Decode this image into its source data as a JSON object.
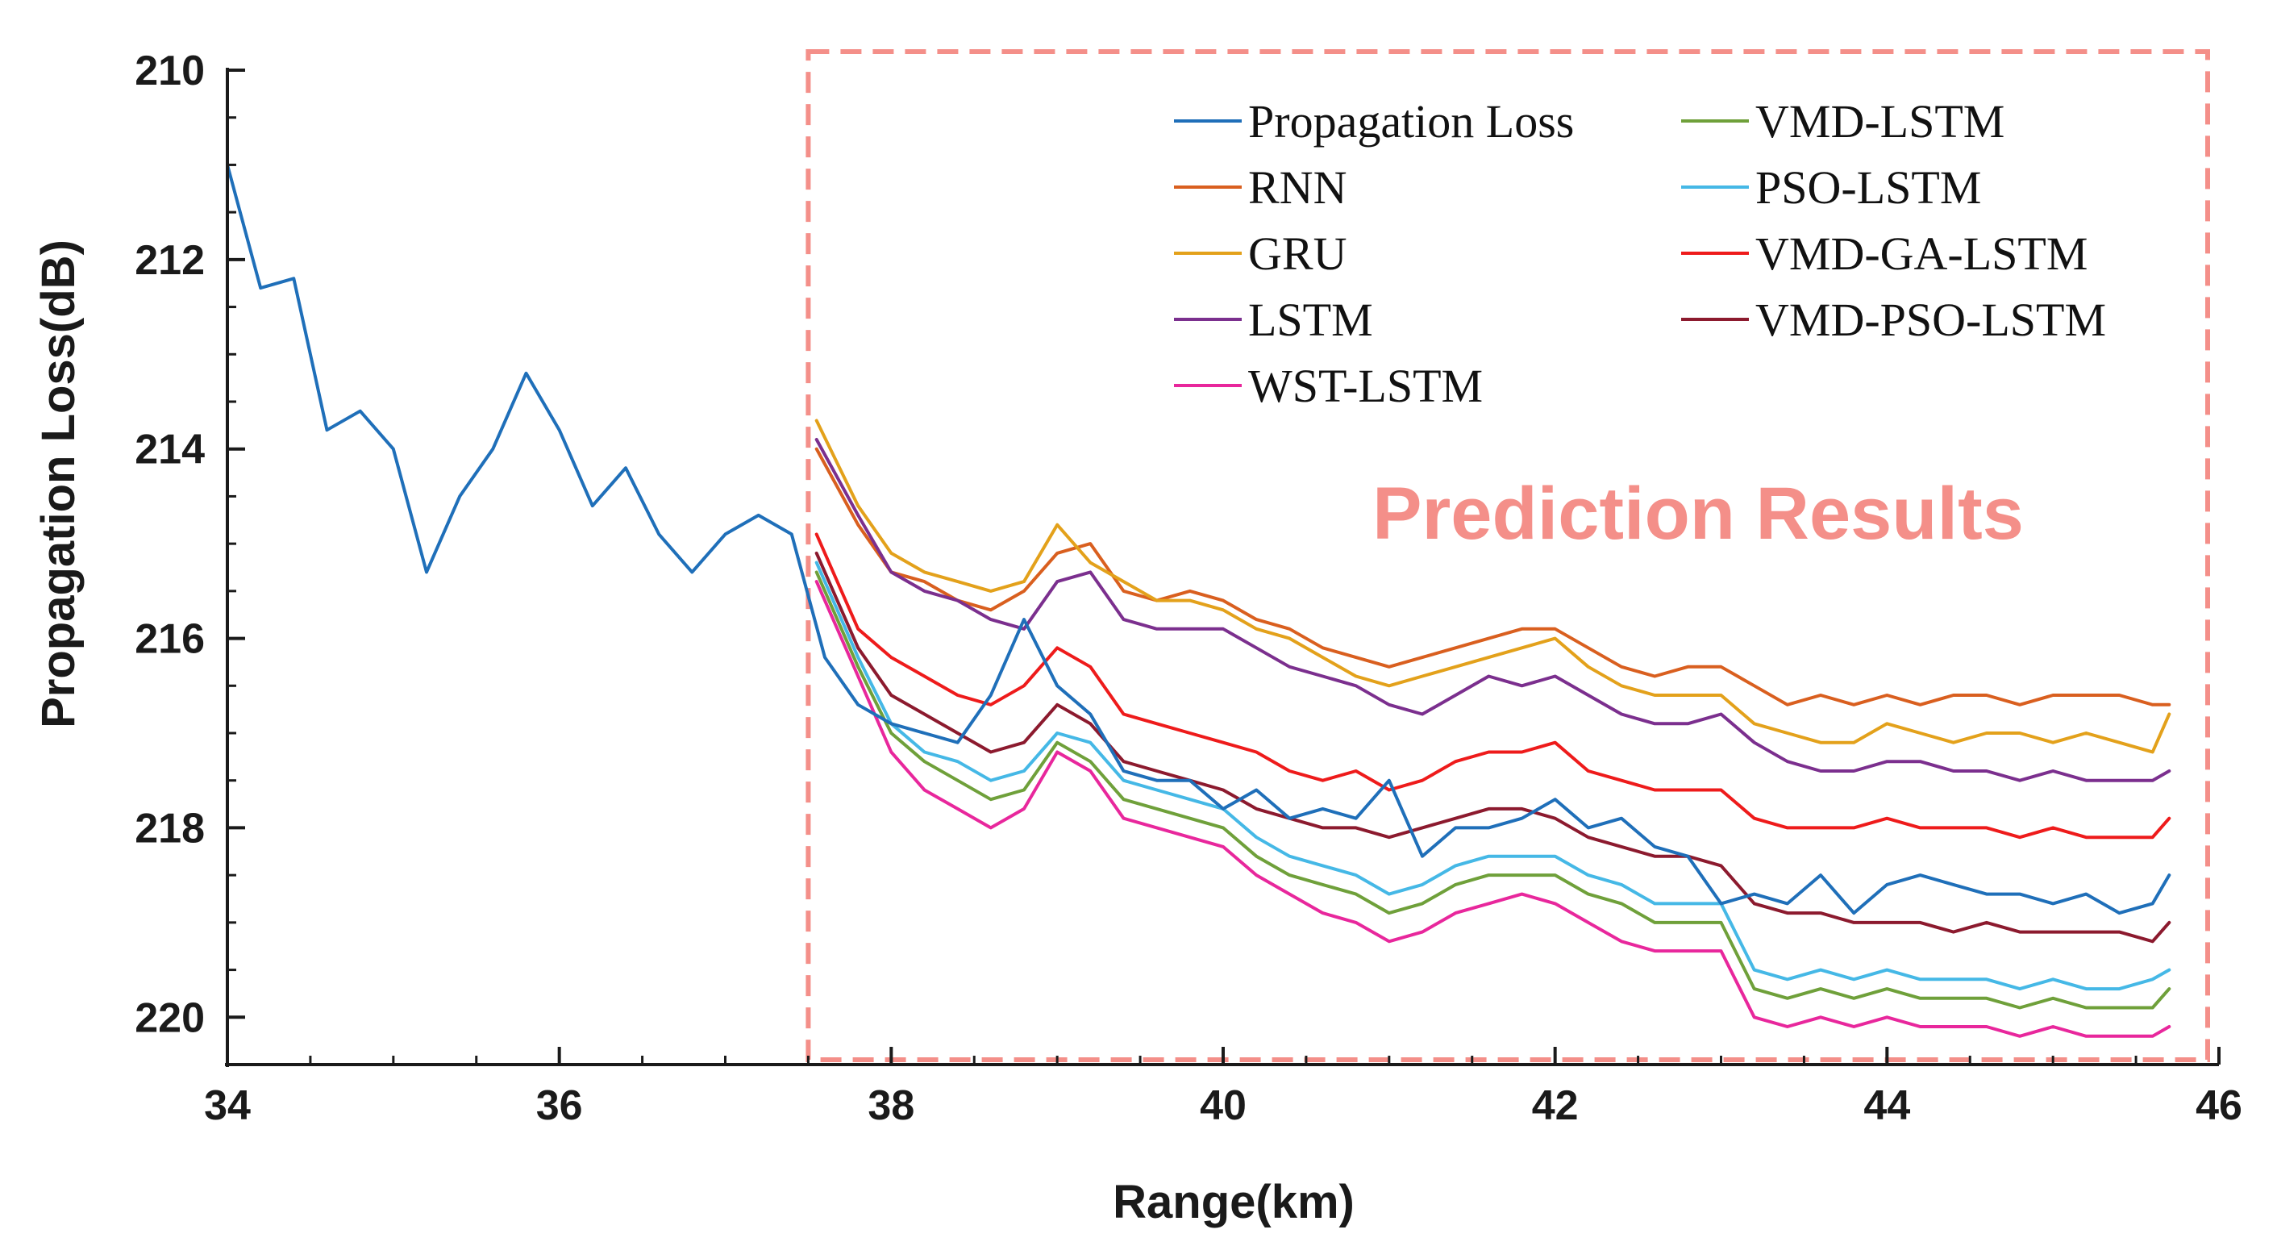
{
  "chart_data": {
    "type": "line",
    "title": "",
    "xlabel": "Range(km)",
    "ylabel": "Propagation Loss(dB)",
    "xlim": [
      34,
      46
    ],
    "ylim": [
      220.5,
      210
    ],
    "y_reversed": true,
    "grid": false,
    "legend_placement": "top-right",
    "x_ticks": [
      "34",
      "36",
      "38",
      "40",
      "42",
      "44",
      "46"
    ],
    "y_ticks": [
      "210",
      "212",
      "214",
      "216",
      "218",
      "220"
    ],
    "annotation": "Prediction Results",
    "highlight_region": {
      "x_start": 37.5,
      "x_end": 46,
      "color": "#f48f89"
    },
    "series": [
      {
        "name": "Propagation Loss",
        "color": "#1f6fb9",
        "x": [
          34.0,
          34.2,
          34.4,
          34.6,
          34.8,
          35.0,
          35.2,
          35.4,
          35.6,
          35.8,
          36.0,
          36.2,
          36.4,
          36.6,
          36.8,
          37.0,
          37.2,
          37.4,
          37.6,
          37.8,
          38.0,
          38.2,
          38.4,
          38.6,
          38.8,
          39.0,
          39.2,
          39.4,
          39.6,
          39.8,
          40.0,
          40.2,
          40.4,
          40.6,
          40.8,
          41.0,
          41.2,
          41.4,
          41.6,
          41.8,
          42.0,
          42.2,
          42.4,
          42.6,
          42.8,
          43.0,
          43.2,
          43.4,
          43.6,
          43.8,
          44.0,
          44.2,
          44.4,
          44.6,
          44.8,
          45.0,
          45.2,
          45.4,
          45.6,
          45.7
        ],
        "y": [
          211.0,
          212.3,
          212.2,
          213.8,
          213.6,
          214.0,
          215.3,
          214.5,
          214.0,
          213.2,
          213.8,
          214.6,
          214.2,
          214.9,
          215.3,
          214.9,
          214.7,
          214.9,
          216.2,
          216.7,
          216.9,
          217.0,
          217.1,
          216.6,
          215.8,
          216.5,
          216.8,
          217.4,
          217.5,
          217.5,
          217.8,
          217.6,
          217.9,
          217.8,
          217.9,
          217.5,
          218.3,
          218.0,
          218.0,
          217.9,
          217.7,
          218.0,
          217.9,
          218.2,
          218.3,
          218.8,
          218.7,
          218.8,
          218.5,
          218.9,
          218.6,
          218.5,
          218.6,
          218.7,
          218.7,
          218.8,
          218.7,
          218.9,
          218.8,
          218.5
        ]
      },
      {
        "name": "RNN",
        "color": "#d95f1f",
        "x": [
          37.55,
          37.8,
          38.0,
          38.2,
          38.4,
          38.6,
          38.8,
          39.0,
          39.2,
          39.4,
          39.6,
          39.8,
          40.0,
          40.2,
          40.4,
          40.6,
          40.8,
          41.0,
          41.2,
          41.4,
          41.6,
          41.8,
          42.0,
          42.2,
          42.4,
          42.6,
          42.8,
          43.0,
          43.2,
          43.4,
          43.6,
          43.8,
          44.0,
          44.2,
          44.4,
          44.6,
          44.8,
          45.0,
          45.2,
          45.4,
          45.6,
          45.7
        ],
        "y": [
          214.0,
          214.8,
          215.3,
          215.4,
          215.6,
          215.7,
          215.5,
          215.1,
          215.0,
          215.5,
          215.6,
          215.5,
          215.6,
          215.8,
          215.9,
          216.1,
          216.2,
          216.3,
          216.2,
          216.1,
          216.0,
          215.9,
          215.9,
          216.1,
          216.3,
          216.4,
          216.3,
          216.3,
          216.5,
          216.7,
          216.6,
          216.7,
          216.6,
          216.7,
          216.6,
          216.6,
          216.7,
          216.6,
          216.6,
          216.6,
          216.7,
          216.7
        ]
      },
      {
        "name": "GRU",
        "color": "#e3a11b",
        "x": [
          37.55,
          37.8,
          38.0,
          38.2,
          38.4,
          38.6,
          38.8,
          39.0,
          39.2,
          39.4,
          39.6,
          39.8,
          40.0,
          40.2,
          40.4,
          40.6,
          40.8,
          41.0,
          41.2,
          41.4,
          41.6,
          41.8,
          42.0,
          42.2,
          42.4,
          42.6,
          42.8,
          43.0,
          43.2,
          43.4,
          43.6,
          43.8,
          44.0,
          44.2,
          44.4,
          44.6,
          44.8,
          45.0,
          45.2,
          45.4,
          45.6,
          45.7
        ],
        "y": [
          213.7,
          214.6,
          215.1,
          215.3,
          215.4,
          215.5,
          215.4,
          214.8,
          215.2,
          215.4,
          215.6,
          215.6,
          215.7,
          215.9,
          216.0,
          216.2,
          216.4,
          216.5,
          216.4,
          216.3,
          216.2,
          216.1,
          216.0,
          216.3,
          216.5,
          216.6,
          216.6,
          216.6,
          216.9,
          217.0,
          217.1,
          217.1,
          216.9,
          217.0,
          217.1,
          217.0,
          217.0,
          217.1,
          217.0,
          217.1,
          217.2,
          216.8
        ]
      },
      {
        "name": "LSTM",
        "color": "#7b2f8e",
        "x": [
          37.55,
          37.8,
          38.0,
          38.2,
          38.4,
          38.6,
          38.8,
          39.0,
          39.2,
          39.4,
          39.6,
          39.8,
          40.0,
          40.2,
          40.4,
          40.6,
          40.8,
          41.0,
          41.2,
          41.4,
          41.6,
          41.8,
          42.0,
          42.2,
          42.4,
          42.6,
          42.8,
          43.0,
          43.2,
          43.4,
          43.6,
          43.8,
          44.0,
          44.2,
          44.4,
          44.6,
          44.8,
          45.0,
          45.2,
          45.4,
          45.6,
          45.7
        ],
        "y": [
          213.9,
          214.7,
          215.3,
          215.5,
          215.6,
          215.8,
          215.9,
          215.4,
          215.3,
          215.8,
          215.9,
          215.9,
          215.9,
          216.1,
          216.3,
          216.4,
          216.5,
          216.7,
          216.8,
          216.6,
          216.4,
          216.5,
          216.4,
          216.6,
          216.8,
          216.9,
          216.9,
          216.8,
          217.1,
          217.3,
          217.4,
          217.4,
          217.3,
          217.3,
          217.4,
          217.4,
          217.5,
          217.4,
          217.5,
          217.5,
          217.5,
          217.4
        ]
      },
      {
        "name": "WST-LSTM",
        "color": "#e8279c",
        "x": [
          37.55,
          37.8,
          38.0,
          38.2,
          38.4,
          38.6,
          38.8,
          39.0,
          39.2,
          39.4,
          39.6,
          39.8,
          40.0,
          40.2,
          40.4,
          40.6,
          40.8,
          41.0,
          41.2,
          41.4,
          41.6,
          41.8,
          42.0,
          42.2,
          42.4,
          42.6,
          42.8,
          43.0,
          43.2,
          43.4,
          43.6,
          43.8,
          44.0,
          44.2,
          44.4,
          44.6,
          44.8,
          45.0,
          45.2,
          45.4,
          45.6,
          45.7
        ],
        "y": [
          215.4,
          216.4,
          217.2,
          217.6,
          217.8,
          218.0,
          217.8,
          217.2,
          217.4,
          217.9,
          218.0,
          218.1,
          218.2,
          218.5,
          218.7,
          218.9,
          219.0,
          219.2,
          219.1,
          218.9,
          218.8,
          218.7,
          218.8,
          219.0,
          219.2,
          219.3,
          219.3,
          219.3,
          220.0,
          220.1,
          220.0,
          220.1,
          220.0,
          220.1,
          220.1,
          220.1,
          220.2,
          220.1,
          220.2,
          220.2,
          220.2,
          220.1
        ]
      },
      {
        "name": "VMD-LSTM",
        "color": "#6fa03a",
        "x": [
          37.55,
          37.8,
          38.0,
          38.2,
          38.4,
          38.6,
          38.8,
          39.0,
          39.2,
          39.4,
          39.6,
          39.8,
          40.0,
          40.2,
          40.4,
          40.6,
          40.8,
          41.0,
          41.2,
          41.4,
          41.6,
          41.8,
          42.0,
          42.2,
          42.4,
          42.6,
          42.8,
          43.0,
          43.2,
          43.4,
          43.6,
          43.8,
          44.0,
          44.2,
          44.4,
          44.6,
          44.8,
          45.0,
          45.2,
          45.4,
          45.6,
          45.7
        ],
        "y": [
          215.3,
          216.3,
          217.0,
          217.3,
          217.5,
          217.7,
          217.6,
          217.1,
          217.3,
          217.7,
          217.8,
          217.9,
          218.0,
          218.3,
          218.5,
          218.6,
          218.7,
          218.9,
          218.8,
          218.6,
          218.5,
          218.5,
          218.5,
          218.7,
          218.8,
          219.0,
          219.0,
          219.0,
          219.7,
          219.8,
          219.7,
          219.8,
          219.7,
          219.8,
          219.8,
          219.8,
          219.9,
          219.8,
          219.9,
          219.9,
          219.9,
          219.7
        ]
      },
      {
        "name": "PSO-LSTM",
        "color": "#45b8e6",
        "x": [
          37.55,
          37.8,
          38.0,
          38.2,
          38.4,
          38.6,
          38.8,
          39.0,
          39.2,
          39.4,
          39.6,
          39.8,
          40.0,
          40.2,
          40.4,
          40.6,
          40.8,
          41.0,
          41.2,
          41.4,
          41.6,
          41.8,
          42.0,
          42.2,
          42.4,
          42.6,
          42.8,
          43.0,
          43.2,
          43.4,
          43.6,
          43.8,
          44.0,
          44.2,
          44.4,
          44.6,
          44.8,
          45.0,
          45.2,
          45.4,
          45.6,
          45.7
        ],
        "y": [
          215.2,
          216.2,
          216.9,
          217.2,
          217.3,
          217.5,
          217.4,
          217.0,
          217.1,
          217.5,
          217.6,
          217.7,
          217.8,
          218.1,
          218.3,
          218.4,
          218.5,
          218.7,
          218.6,
          218.4,
          218.3,
          218.3,
          218.3,
          218.5,
          218.6,
          218.8,
          218.8,
          218.8,
          219.5,
          219.6,
          219.5,
          219.6,
          219.5,
          219.6,
          219.6,
          219.6,
          219.7,
          219.6,
          219.7,
          219.7,
          219.6,
          219.5
        ]
      },
      {
        "name": "VMD-GA-LSTM",
        "color": "#ee1b1b",
        "x": [
          37.55,
          37.8,
          38.0,
          38.2,
          38.4,
          38.6,
          38.8,
          39.0,
          39.2,
          39.4,
          39.6,
          39.8,
          40.0,
          40.2,
          40.4,
          40.6,
          40.8,
          41.0,
          41.2,
          41.4,
          41.6,
          41.8,
          42.0,
          42.2,
          42.4,
          42.6,
          42.8,
          43.0,
          43.2,
          43.4,
          43.6,
          43.8,
          44.0,
          44.2,
          44.4,
          44.6,
          44.8,
          45.0,
          45.2,
          45.4,
          45.6,
          45.7
        ],
        "y": [
          214.9,
          215.9,
          216.2,
          216.4,
          216.6,
          216.7,
          216.5,
          216.1,
          216.3,
          216.8,
          216.9,
          217.0,
          217.1,
          217.2,
          217.4,
          217.5,
          217.4,
          217.6,
          217.5,
          217.3,
          217.2,
          217.2,
          217.1,
          217.4,
          217.5,
          217.6,
          217.6,
          217.6,
          217.9,
          218.0,
          218.0,
          218.0,
          217.9,
          218.0,
          218.0,
          218.0,
          218.1,
          218.0,
          218.1,
          218.1,
          218.1,
          217.9
        ]
      },
      {
        "name": "VMD-PSO-LSTM",
        "color": "#8c1a2e",
        "x": [
          37.55,
          37.8,
          38.0,
          38.2,
          38.4,
          38.6,
          38.8,
          39.0,
          39.2,
          39.4,
          39.6,
          39.8,
          40.0,
          40.2,
          40.4,
          40.6,
          40.8,
          41.0,
          41.2,
          41.4,
          41.6,
          41.8,
          42.0,
          42.2,
          42.4,
          42.6,
          42.8,
          43.0,
          43.2,
          43.4,
          43.6,
          43.8,
          44.0,
          44.2,
          44.4,
          44.6,
          44.8,
          45.0,
          45.2,
          45.4,
          45.6,
          45.7
        ],
        "y": [
          215.1,
          216.1,
          216.6,
          216.8,
          217.0,
          217.2,
          217.1,
          216.7,
          216.9,
          217.3,
          217.4,
          217.5,
          217.6,
          217.8,
          217.9,
          218.0,
          218.0,
          218.1,
          218.0,
          217.9,
          217.8,
          217.8,
          217.9,
          218.1,
          218.2,
          218.3,
          218.3,
          218.4,
          218.8,
          218.9,
          218.9,
          219.0,
          219.0,
          219.0,
          219.1,
          219.0,
          219.1,
          219.1,
          219.1,
          219.1,
          219.2,
          219.0
        ]
      }
    ]
  }
}
